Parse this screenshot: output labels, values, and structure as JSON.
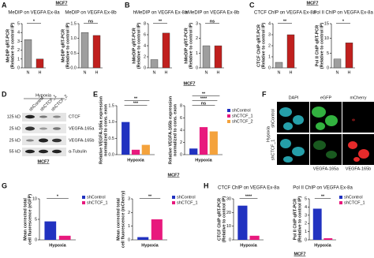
{
  "panel_letters": [
    "A",
    "B",
    "C",
    "D",
    "E",
    "F",
    "G",
    "H"
  ],
  "cell_line": "MCF7",
  "blot": {
    "condition": "Hypoxia",
    "lanes": [
      "shControl",
      "shCTCF_1",
      "shCTCF_2"
    ],
    "sizes": [
      "125 kD",
      "25 kD",
      "25 kD",
      "55 kD"
    ],
    "proteins": [
      "CTCF",
      "VEGFA-165a",
      "VEGFA-165b",
      "α-Tubulin"
    ]
  },
  "microscopy": {
    "channels": [
      "DAPI",
      "eGFP",
      "mCherry"
    ],
    "condition": "Hypoxia",
    "rows": [
      "shControl",
      "shCTCF_1"
    ],
    "reporters": [
      "VEGFA-165a",
      "VEGFA-165b"
    ]
  },
  "chart_data": [
    {
      "type": "bar",
      "title": "MeDIP on VEGFA Ex-8a",
      "y_label": [
        "MeDIP qRT-PCR",
        "(Relative to control IP)"
      ],
      "categories": [
        "N",
        "H"
      ],
      "values": [
        3.2,
        1.0
      ],
      "colors": [
        "#9e9e9e",
        "#c0201e"
      ],
      "ylim": [
        0,
        5
      ],
      "yticks": [
        0,
        1,
        2,
        3,
        4,
        5
      ],
      "annotations": [
        "*"
      ]
    },
    {
      "type": "bar",
      "title": "MeDIP on VEGFA Ex-8b",
      "y_label": [
        "MeDIP qRT-PCR",
        "(Relative to control IP)"
      ],
      "categories": [
        "N",
        "H"
      ],
      "values": [
        1.2,
        1.1
      ],
      "colors": [
        "#9e9e9e",
        "#c0201e"
      ],
      "ylim": [
        0,
        1.5
      ],
      "yticks": [
        {
          "value": 0,
          "label": "0.0"
        },
        {
          "value": 0.5,
          "label": "0.5"
        },
        {
          "value": 1,
          "label": "1.0"
        },
        {
          "value": 1.5,
          "label": "1.5"
        }
      ],
      "annotations": [
        "ns"
      ]
    },
    {
      "type": "bar",
      "title": "hMeDIP on VEGFA Ex-8a",
      "y_label": [
        "hMeDIP qRT-PCR",
        "(Relative to control IP)"
      ],
      "categories": [
        "N",
        "H"
      ],
      "values": [
        1.5,
        6.3
      ],
      "colors": [
        "#9e9e9e",
        "#c0201e"
      ],
      "ylim": [
        0,
        8
      ],
      "yticks": [
        0,
        2,
        4,
        6,
        8
      ],
      "annotations": [
        "**"
      ]
    },
    {
      "type": "bar",
      "title": "hMeDIP on VEGFA Ex-8b",
      "y_label": [
        "hMeDIP qRT-PCR",
        "(Relative to control IP)"
      ],
      "categories": [
        "N",
        "H"
      ],
      "values": [
        1.5,
        1.5
      ],
      "colors": [
        "#9e9e9e",
        "#c0201e"
      ],
      "ylim": [
        0,
        3
      ],
      "yticks": [
        0,
        1,
        2,
        3
      ],
      "annotations": [
        "ns"
      ]
    },
    {
      "type": "bar",
      "title": "CTCF ChIP on VEGFA Ex-8a",
      "y_label": [
        "CTCF ChIP qRT-PCR",
        "(Relative to control IP)"
      ],
      "categories": [
        "N",
        "H"
      ],
      "values": [
        0.5,
        3.0
      ],
      "colors": [
        "#9e9e9e",
        "#c0201e"
      ],
      "ylim": [
        0,
        4
      ],
      "yticks": [
        0,
        1,
        2,
        3,
        4
      ],
      "annotations": [
        "**"
      ]
    },
    {
      "type": "bar",
      "title": "Pol II ChIP on VEGFA Ex-8a",
      "y_label": [
        "Pol II ChIP qRT-PCR",
        "(Relative to control IP)"
      ],
      "categories": [
        "N",
        "H"
      ],
      "values": [
        3,
        8.5
      ],
      "colors": [
        "#9e9e9e",
        "#c0201e"
      ],
      "ylim": [
        0,
        15
      ],
      "yticks": [
        0,
        5,
        10,
        15
      ],
      "annotations": [
        "*"
      ]
    },
    {
      "type": "bar",
      "y_label": [
        "Relative VEGFA-165a expression",
        "normalized to cons. exon"
      ],
      "x_label": "Hypoxia",
      "categories": [
        null
      ],
      "series": [
        {
          "name": "shControl",
          "color": "#2132c0",
          "values": [
            1.0
          ]
        },
        {
          "name": "shCTCF_1",
          "color": "#e8197d",
          "values": [
            0.15
          ]
        },
        {
          "name": "shCTCF_2",
          "color": "#f4a23c",
          "values": [
            0.3
          ]
        }
      ],
      "ylim": [
        0,
        1.5
      ],
      "yticks": [
        {
          "value": 0,
          "label": "0.0"
        },
        {
          "value": 0.5,
          "label": "0.5"
        },
        {
          "value": 1,
          "label": "1.0"
        },
        {
          "value": 1.5,
          "label": "1.5"
        }
      ],
      "annotations": [
        "***",
        "**"
      ],
      "legend": false
    },
    {
      "type": "bar",
      "y_label": [
        "Relative VEGFA-165b expression",
        "normalized to cons. exon"
      ],
      "x_label": "Hypoxia",
      "categories": [
        null
      ],
      "series": [
        {
          "name": "shControl",
          "color": "#2132c0",
          "values": [
            1.0
          ]
        },
        {
          "name": "shCTCF_1",
          "color": "#e8197d",
          "values": [
            4.5
          ]
        },
        {
          "name": "shCTCF_2",
          "color": "#f4a23c",
          "values": [
            3.8
          ]
        }
      ],
      "ylim": [
        0,
        8
      ],
      "yticks": [
        0,
        2,
        4,
        6,
        8
      ],
      "annotations": [
        "ns",
        "****",
        "**"
      ],
      "legend": true
    },
    {
      "type": "bar",
      "y_label": [
        "Mean corrected total",
        "cell fluorescence (eGFP)"
      ],
      "x_label": "Hypoxia",
      "categories": [
        null
      ],
      "series": [
        {
          "name": "shControl",
          "color": "#2132c0",
          "values": [
            4.5
          ]
        },
        {
          "name": "shCTCF_1",
          "color": "#e8197d",
          "values": [
            1.0
          ]
        }
      ],
      "ylim": [
        0,
        10
      ],
      "yticks": [
        0,
        5,
        10
      ],
      "annotations": [
        "*"
      ],
      "legend": true
    },
    {
      "type": "bar",
      "y_label": [
        "Mean corrected total",
        "cell fluorescence (mCherry)"
      ],
      "x_label": "Hypoxia",
      "categories": [
        null
      ],
      "series": [
        {
          "name": "shControl",
          "color": "#2132c0",
          "values": [
            0.2
          ]
        },
        {
          "name": "shCTCF_1",
          "color": "#e8197d",
          "values": [
            1.5
          ]
        }
      ],
      "ylim": [
        0,
        3
      ],
      "yticks": [
        0,
        1,
        2,
        3
      ],
      "annotations": [
        "**"
      ],
      "legend": true
    },
    {
      "type": "bar",
      "title": "CTCF ChIP on VEGFA Ex-8a",
      "y_label": [
        "CTCF ChIP qRT-PCR",
        "(Relative to control IP)"
      ],
      "x_label": "Hypoxia",
      "categories": [
        null
      ],
      "series": [
        {
          "name": "shControl",
          "color": "#2132c0",
          "values": [
            25
          ]
        },
        {
          "name": "shCTCF_1",
          "color": "#e8197d",
          "values": [
            3
          ]
        }
      ],
      "ylim": [
        0,
        30
      ],
      "yticks": [
        0,
        10,
        20,
        30
      ],
      "annotations": [
        "****"
      ],
      "legend": false
    },
    {
      "type": "bar",
      "title": "Pol II ChIP on VEGFA Ex-8a",
      "y_label": [
        "Pol II ChIP qRT-PCR",
        "(Relative to control IP)"
      ],
      "x_label": "Hypoxia",
      "categories": [
        null
      ],
      "series": [
        {
          "name": "shControl",
          "color": "#2132c0",
          "values": [
            3.8
          ]
        },
        {
          "name": "shCTCF_1",
          "color": "#e8197d",
          "values": [
            0.2
          ]
        }
      ],
      "ylim": [
        0,
        5
      ],
      "yticks": [
        0,
        1,
        2,
        3,
        4,
        5
      ],
      "annotations": [
        "**"
      ],
      "legend": true
    }
  ]
}
